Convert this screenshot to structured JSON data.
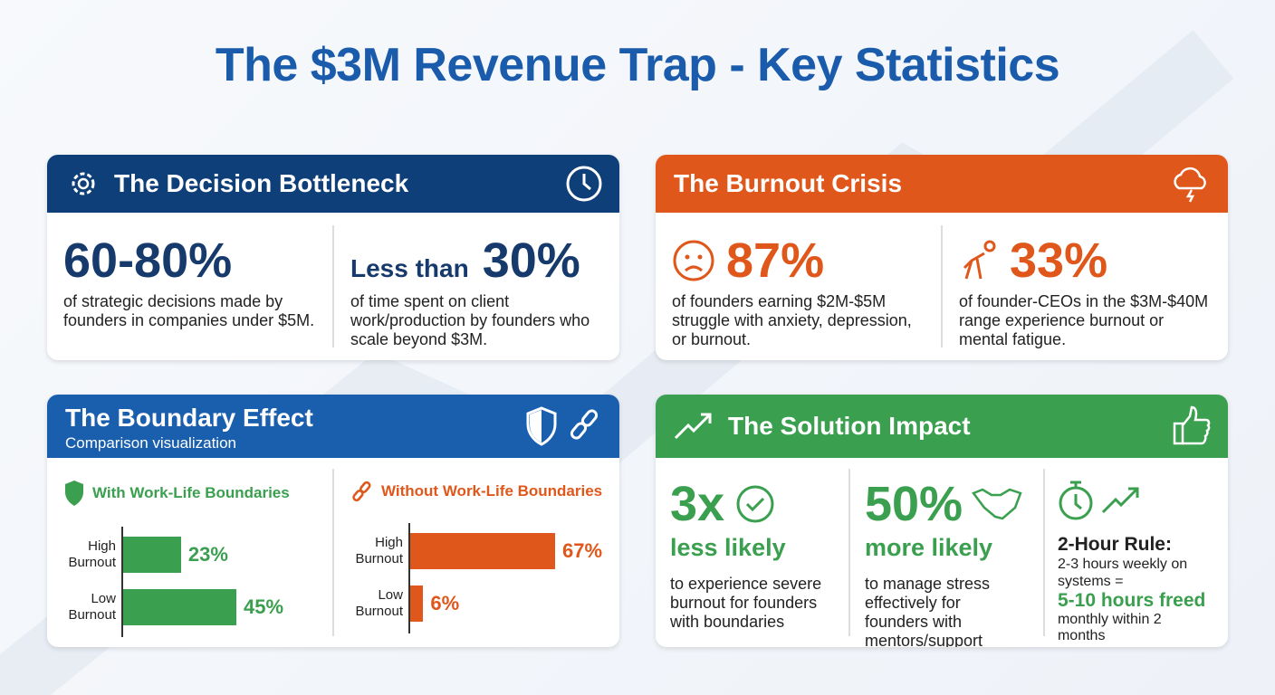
{
  "title": "The $3M Revenue Trap - Key Statistics",
  "colors": {
    "title": "#1a5cab",
    "decision": "#0f3f78",
    "burnout": "#e0571b",
    "boundary": "#1a5fae",
    "solution": "#3a9f4e",
    "navy_text": "#163a6b"
  },
  "decision": {
    "title": "The Decision Bottleneck",
    "stats": [
      {
        "value": "60-80%",
        "desc": "of strategic decisions made by founders in companies under $5M."
      },
      {
        "prefix": "Less than",
        "value": "30%",
        "desc": "of time spent on client work/production by founders who scale beyond $3M."
      }
    ]
  },
  "burnout": {
    "title": "The Burnout Crisis",
    "stats": [
      {
        "value": "87%",
        "desc": "of founders earning $2M-$5M struggle with anxiety, depression, or burnout."
      },
      {
        "value": "33%",
        "desc": "of founder-CEOs in the $3M-$40M range experience burnout or mental fatigue."
      }
    ]
  },
  "boundary": {
    "title": "The Boundary Effect",
    "subtitle": "Comparison visualization"
  },
  "solution": {
    "title": "The Solution Impact",
    "stats": [
      {
        "value": "3x",
        "label": "less likely",
        "desc": "to experience severe burnout for founders with boundaries"
      },
      {
        "value": "50%",
        "label": "more likely",
        "desc": "to manage stress effectively for founders with mentors/support"
      },
      {
        "title": "2-Hour Rule:",
        "line1": "2-3 hours weekly on systems =",
        "highlight": "5-10 hours freed",
        "line2": "monthly within 2 months"
      }
    ]
  },
  "chart_data": [
    {
      "type": "bar",
      "title": "With Work-Life Boundaries",
      "categories": [
        "High Burnout",
        "Low Burnout"
      ],
      "values": [
        23,
        45
      ],
      "labels": [
        "23%",
        "45%"
      ],
      "color": "#3a9f4e"
    },
    {
      "type": "bar",
      "title": "Without Work-Life Boundaries",
      "categories": [
        "High Burnout",
        "Low Burnout"
      ],
      "values": [
        67,
        6
      ],
      "labels": [
        "67%",
        "6%"
      ],
      "color": "#e0571b"
    }
  ]
}
